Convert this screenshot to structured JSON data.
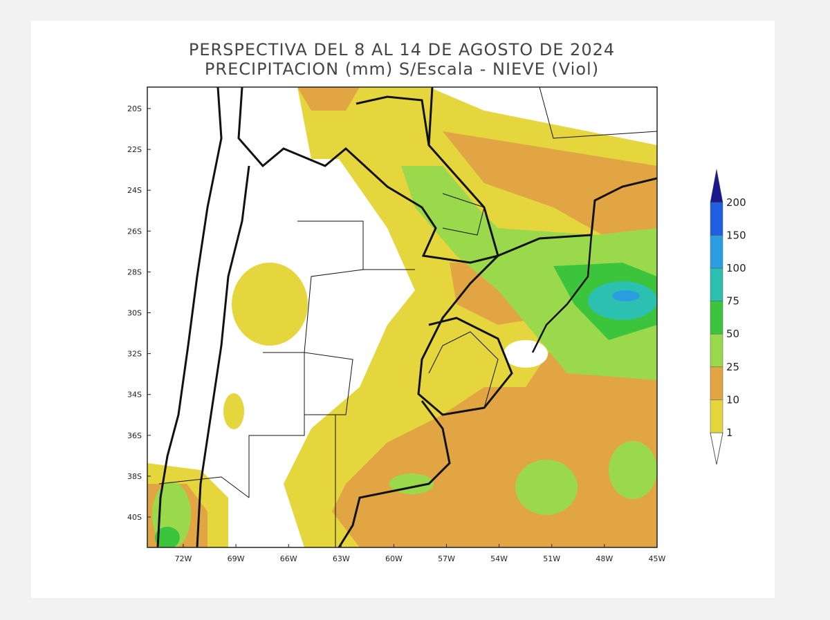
{
  "title": [
    "PERSPECTIVA DEL 8 AL 14 DE AGOSTO DE 2024",
    "PRECIPITACION (mm) S/Escala - NIEVE (Viol)"
  ],
  "lat_labels": [
    "20S",
    "22S",
    "24S",
    "26S",
    "28S",
    "30S",
    "32S",
    "34S",
    "36S",
    "38S",
    "40S"
  ],
  "lon_labels": [
    "72W",
    "69W",
    "66W",
    "63W",
    "60W",
    "57W",
    "54W",
    "51W",
    "48W",
    "45W"
  ],
  "legend": {
    "levels": [
      1,
      10,
      25,
      50,
      75,
      100,
      150,
      200
    ],
    "colors": [
      "#e4d63c",
      "#e2a544",
      "#9bd94c",
      "#3cc43c",
      "#2cc0b0",
      "#2a9ee0",
      "#1f5fe0",
      "#1a1a8c"
    ]
  }
}
